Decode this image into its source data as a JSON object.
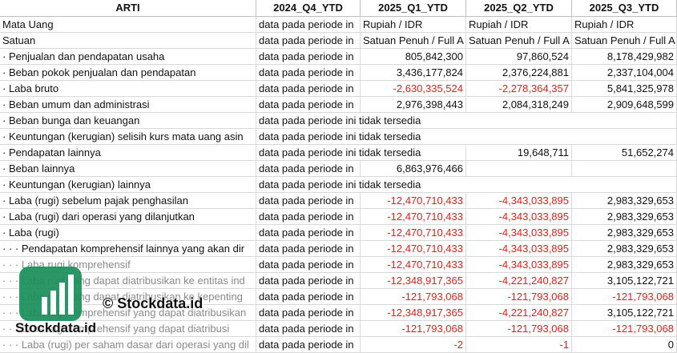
{
  "table": {
    "header": [
      "ARTI",
      "2024_Q4_YTD",
      "2025_Q1_YTD",
      "2025_Q2_YTD",
      "2025_Q3_YTD"
    ],
    "rows": [
      [
        "Mata Uang",
        "data pada periode in",
        "Rupiah / IDR",
        "Rupiah / IDR",
        "Rupiah / IDR"
      ],
      [
        "Satuan",
        "data pada periode in",
        "Satuan Penuh / Full A",
        "Satuan Penuh / Full A",
        "Satuan Penuh / Full A"
      ],
      [
        "· Penjualan dan pendapatan usaha",
        "data pada periode in",
        "805,842,300",
        "97,860,524",
        "8,178,429,982"
      ],
      [
        "· Beban pokok penjualan dan pendapatan",
        "data pada periode in",
        "3,436,177,824",
        "2,376,224,881",
        "2,337,104,004"
      ],
      [
        "· Laba bruto",
        "data pada periode in",
        "-2,630,335,524",
        "-2,278,364,357",
        "5,841,325,978"
      ],
      [
        "· Beban umum dan administrasi",
        "data pada periode in",
        "2,976,398,443",
        "2,084,318,249",
        "2,909,648,599"
      ],
      [
        "· Beban bunga dan keuangan",
        "data pada periode ini tidak tersedia",
        null,
        null,
        null
      ],
      [
        "· Keuntungan (kerugian) selisih kurs mata uang asin",
        "data pada periode ini tidak tersedia",
        null,
        null,
        null
      ],
      [
        "· Pendapatan lainnya",
        "data pada periode ini tidak tersedia",
        null,
        "19,648,711",
        "51,652,274"
      ],
      [
        "· Beban lainnya",
        "data pada periode in",
        "6,863,976,466",
        null,
        null
      ],
      [
        "· Keuntungan (kerugian) lainnya",
        "data pada periode ini tidak tersedia",
        null,
        null,
        null
      ],
      [
        "· Laba (rugi) sebelum pajak penghasilan",
        "data pada periode in",
        "-12,470,710,433",
        "-4,343,033,895",
        "2,983,329,653"
      ],
      [
        "· Laba (rugi) dari operasi yang dilanjutkan",
        "data pada periode in",
        "-12,470,710,433",
        "-4,343,033,895",
        "2,983,329,653"
      ],
      [
        "· Laba (rugi)",
        "data pada periode in",
        "-12,470,710,433",
        "-4,343,033,895",
        "2,983,329,653"
      ],
      [
        "· · · Pendapatan komprehensif lainnya yang akan dir",
        "data pada periode in",
        "-12,470,710,433",
        "-4,343,033,895",
        "2,983,329,653"
      ],
      [
        "· · · Laba rugi komprehensif",
        "data pada periode in",
        "-12,470,710,433",
        "-4,343,033,895",
        "2,983,329,653"
      ],
      [
        "· · · Laba rugi yang dapat diatribusikan ke entitas ind",
        "data pada periode in",
        "-12,348,917,365",
        "-4,221,240,827",
        "3,105,122,721"
      ],
      [
        "· · · Laba rugi yang dapat diatribusikan ke kepenting",
        "data pada periode in",
        "-121,793,068",
        "-121,793,068",
        "-121,793,068"
      ],
      [
        "· · · Laba rugi komprehensif yang dapat diatribusikan",
        "data pada periode in",
        "-12,348,917,365",
        "-4,221,240,827",
        "3,105,122,721"
      ],
      [
        "· · · Laba rugi komprehensif yang dapat diatribusi",
        "data pada periode in",
        "-121,793,068",
        "-121,793,068",
        "-121,793,068"
      ],
      [
        "· · · Laba (rugi) per saham dasar dari operasi yang dil",
        "data pada periode in",
        "-2",
        "-1",
        "0"
      ]
    ]
  },
  "watermark": {
    "caption": "© Stockdata.id",
    "logo_text": "Stockdata.id"
  }
}
